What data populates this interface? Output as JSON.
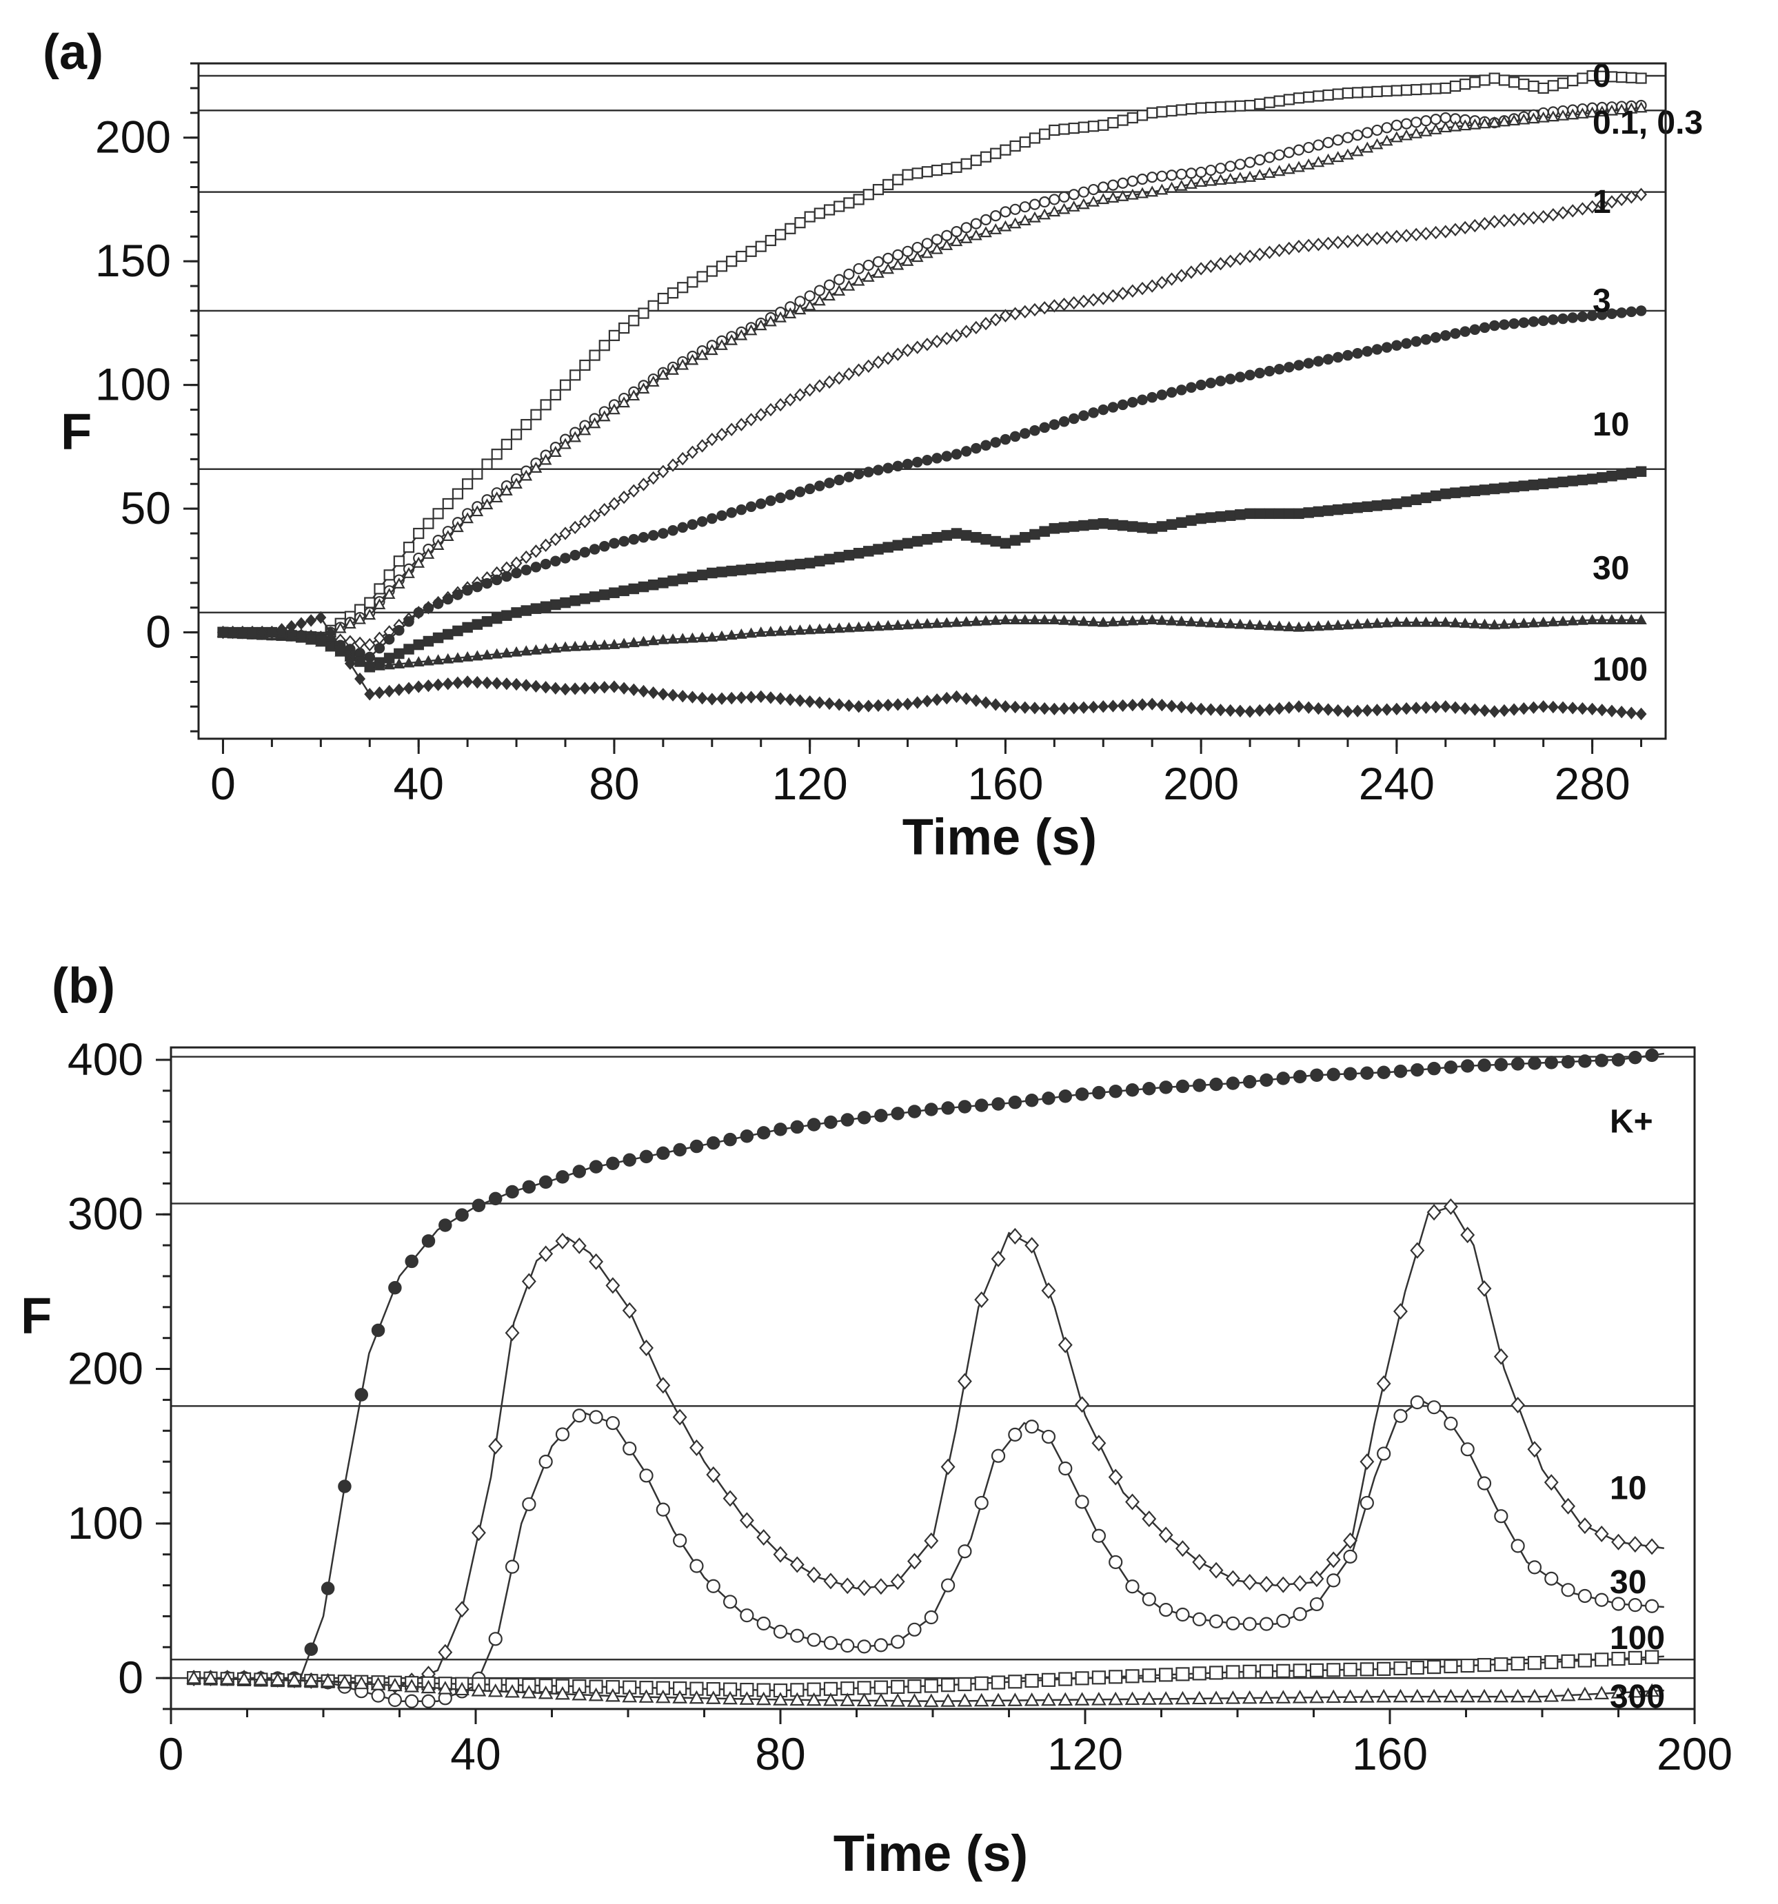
{
  "chart_data": [
    {
      "panel": "(a)",
      "type": "line",
      "xlabel": "Time (s)",
      "ylabel": "F",
      "xlim": [
        -5,
        295
      ],
      "ylim": [
        -43,
        230
      ],
      "xticks": [
        0,
        40,
        80,
        120,
        160,
        200,
        240,
        280
      ],
      "yticks": [
        0,
        50,
        100,
        150,
        200
      ],
      "reference_lines": [
        225,
        211,
        178,
        130,
        66,
        8
      ],
      "series": [
        {
          "name": "0",
          "marker": "square-open",
          "x": [
            0,
            10,
            20,
            30,
            40,
            50,
            60,
            70,
            80,
            90,
            100,
            110,
            120,
            130,
            140,
            150,
            160,
            170,
            180,
            190,
            200,
            210,
            220,
            230,
            240,
            250,
            260,
            270,
            280,
            290
          ],
          "values": [
            0,
            -1,
            -2,
            12,
            40,
            60,
            80,
            100,
            120,
            135,
            146,
            156,
            168,
            175,
            185,
            188,
            195,
            203,
            205,
            210,
            212,
            213,
            216,
            218,
            219,
            220,
            224,
            220,
            225,
            224
          ]
        },
        {
          "name": "0.1",
          "marker": "circle-open",
          "x": [
            0,
            10,
            20,
            30,
            40,
            50,
            60,
            70,
            80,
            90,
            100,
            110,
            120,
            130,
            140,
            150,
            160,
            170,
            180,
            190,
            200,
            210,
            220,
            230,
            240,
            250,
            260,
            270,
            280,
            290
          ],
          "values": [
            0,
            -1,
            -2,
            8,
            30,
            48,
            62,
            78,
            92,
            105,
            116,
            125,
            136,
            147,
            154,
            162,
            170,
            175,
            180,
            184,
            186,
            190,
            195,
            200,
            205,
            208,
            206,
            210,
            212,
            213
          ]
        },
        {
          "name": "0.3",
          "marker": "triangle-open",
          "x": [
            0,
            10,
            20,
            30,
            40,
            50,
            60,
            70,
            80,
            90,
            100,
            110,
            120,
            130,
            140,
            150,
            160,
            170,
            180,
            190,
            200,
            210,
            220,
            230,
            240,
            250,
            260,
            270,
            280,
            290
          ],
          "values": [
            0,
            -1,
            -2,
            7,
            28,
            46,
            60,
            76,
            90,
            104,
            114,
            124,
            132,
            142,
            150,
            158,
            164,
            170,
            175,
            178,
            182,
            184,
            188,
            193,
            200,
            204,
            206,
            208,
            210,
            212
          ]
        },
        {
          "name": "1",
          "marker": "diamond-open",
          "x": [
            0,
            10,
            20,
            30,
            40,
            50,
            60,
            70,
            80,
            90,
            100,
            110,
            120,
            130,
            140,
            150,
            160,
            170,
            180,
            190,
            200,
            210,
            220,
            230,
            240,
            250,
            260,
            270,
            280,
            290
          ],
          "values": [
            0,
            0,
            -2,
            -5,
            8,
            18,
            28,
            40,
            52,
            65,
            78,
            88,
            98,
            106,
            114,
            120,
            128,
            132,
            135,
            140,
            147,
            152,
            156,
            158,
            160,
            162,
            166,
            168,
            172,
            177
          ]
        },
        {
          "name": "3",
          "marker": "circle-filled",
          "x": [
            0,
            10,
            20,
            30,
            40,
            50,
            60,
            70,
            80,
            90,
            100,
            110,
            120,
            130,
            140,
            150,
            160,
            170,
            180,
            190,
            200,
            210,
            220,
            230,
            240,
            250,
            260,
            270,
            280,
            290
          ],
          "values": [
            0,
            0,
            -2,
            -10,
            8,
            17,
            24,
            30,
            36,
            40,
            46,
            52,
            58,
            64,
            68,
            72,
            78,
            84,
            90,
            95,
            100,
            104,
            108,
            112,
            116,
            120,
            124,
            126,
            128,
            130
          ]
        },
        {
          "name": "10",
          "marker": "square-filled",
          "x": [
            0,
            10,
            20,
            30,
            40,
            50,
            60,
            70,
            80,
            90,
            100,
            110,
            120,
            130,
            140,
            150,
            160,
            170,
            180,
            190,
            200,
            210,
            220,
            230,
            240,
            250,
            260,
            270,
            280,
            290
          ],
          "values": [
            0,
            0,
            -3,
            -14,
            -5,
            2,
            8,
            12,
            16,
            20,
            24,
            26,
            28,
            32,
            36,
            40,
            36,
            42,
            44,
            42,
            46,
            48,
            48,
            50,
            52,
            56,
            58,
            60,
            62,
            65
          ]
        },
        {
          "name": "30",
          "marker": "triangle-filled",
          "x": [
            0,
            10,
            20,
            30,
            40,
            50,
            60,
            70,
            80,
            90,
            100,
            110,
            120,
            130,
            140,
            150,
            160,
            170,
            180,
            190,
            200,
            210,
            220,
            230,
            240,
            250,
            260,
            270,
            280,
            290
          ],
          "values": [
            0,
            0,
            -4,
            -14,
            -12,
            -10,
            -8,
            -6,
            -5,
            -3,
            -2,
            0,
            1,
            2,
            3,
            4,
            5,
            5,
            4,
            5,
            4,
            3,
            2,
            3,
            4,
            4,
            3,
            4,
            5,
            5
          ]
        },
        {
          "name": "100",
          "marker": "diamond-filled",
          "x": [
            0,
            10,
            20,
            30,
            40,
            50,
            60,
            70,
            80,
            90,
            100,
            110,
            120,
            130,
            140,
            150,
            160,
            170,
            180,
            190,
            200,
            210,
            220,
            230,
            240,
            250,
            260,
            270,
            280,
            290
          ],
          "values": [
            0,
            0,
            6,
            -25,
            -22,
            -20,
            -21,
            -23,
            -22,
            -25,
            -27,
            -26,
            -28,
            -30,
            -29,
            -26,
            -30,
            -31,
            -30,
            -29,
            -31,
            -32,
            -30,
            -32,
            -31,
            -30,
            -32,
            -30,
            -31,
            -33
          ]
        }
      ],
      "annotations": [
        {
          "text": "0",
          "series": "0"
        },
        {
          "text": "0.1, 0.3",
          "series": "0.1"
        },
        {
          "text": "1",
          "series": "1"
        },
        {
          "text": "3",
          "series": "3"
        },
        {
          "text": "10",
          "series": "10"
        },
        {
          "text": "30",
          "series": "30"
        },
        {
          "text": "100",
          "series": "100"
        }
      ],
      "label_values": [
        225,
        206,
        174,
        134,
        84,
        26,
        -15
      ]
    },
    {
      "panel": "(b)",
      "type": "line",
      "xlabel": "Time (s)",
      "ylabel": "F",
      "xlim": [
        0,
        200
      ],
      "ylim": [
        -20,
        408
      ],
      "xticks": [
        0,
        40,
        80,
        120,
        160,
        200
      ],
      "yticks": [
        0,
        100,
        200,
        300,
        400
      ],
      "reference_lines": [
        402,
        307,
        176,
        12,
        0
      ],
      "series": [
        {
          "name": "K+",
          "marker": "circle-filled",
          "x": [
            3,
            10,
            17,
            20,
            23,
            26,
            30,
            35,
            40,
            45,
            50,
            55,
            60,
            70,
            80,
            90,
            100,
            110,
            120,
            130,
            140,
            150,
            160,
            170,
            180,
            190,
            196
          ],
          "values": [
            0,
            0,
            0,
            40,
            130,
            210,
            260,
            290,
            305,
            315,
            322,
            330,
            335,
            345,
            355,
            362,
            368,
            372,
            378,
            382,
            385,
            390,
            392,
            396,
            398,
            400,
            404
          ]
        },
        {
          "name": "10",
          "marker": "diamond-open",
          "x": [
            3,
            10,
            20,
            30,
            35,
            38,
            42,
            45,
            48,
            52,
            55,
            60,
            65,
            70,
            75,
            80,
            85,
            90,
            95,
            100,
            103,
            106,
            110,
            113,
            116,
            120,
            125,
            130,
            135,
            140,
            145,
            150,
            155,
            158,
            162,
            165,
            168,
            171,
            175,
            180,
            185,
            190,
            196
          ],
          "values": [
            0,
            0,
            -2,
            -5,
            5,
            40,
            130,
            230,
            270,
            285,
            275,
            240,
            185,
            140,
            105,
            80,
            65,
            58,
            60,
            90,
            160,
            240,
            288,
            280,
            240,
            170,
            120,
            95,
            75,
            63,
            60,
            62,
            90,
            165,
            250,
            300,
            305,
            280,
            200,
            135,
            100,
            88,
            84
          ]
        },
        {
          "name": "30",
          "marker": "circle-open",
          "x": [
            3,
            10,
            20,
            30,
            35,
            40,
            43,
            46,
            50,
            54,
            58,
            62,
            66,
            70,
            75,
            80,
            85,
            90,
            95,
            100,
            105,
            108,
            112,
            115,
            118,
            122,
            126,
            130,
            135,
            140,
            145,
            150,
            155,
            158,
            161,
            164,
            167,
            170,
            174,
            178,
            184,
            190,
            196
          ],
          "values": [
            0,
            0,
            -2,
            -15,
            -15,
            -5,
            30,
            100,
            150,
            172,
            165,
            135,
            95,
            65,
            42,
            30,
            24,
            20,
            22,
            40,
            90,
            140,
            165,
            158,
            130,
            90,
            60,
            45,
            38,
            35,
            35,
            45,
            80,
            130,
            168,
            180,
            172,
            150,
            110,
            75,
            55,
            48,
            46
          ]
        },
        {
          "name": "100",
          "marker": "square-open",
          "x": [
            3,
            20,
            40,
            60,
            80,
            100,
            120,
            140,
            160,
            180,
            196
          ],
          "values": [
            0,
            -2,
            -4,
            -6,
            -8,
            -5,
            0,
            4,
            6,
            10,
            14
          ]
        },
        {
          "name": "300",
          "marker": "triangle-open",
          "x": [
            3,
            20,
            40,
            60,
            80,
            100,
            120,
            140,
            160,
            180,
            196
          ],
          "values": [
            0,
            -2,
            -8,
            -12,
            -14,
            -15,
            -14,
            -13,
            -12,
            -12,
            -8
          ]
        }
      ],
      "annotations": [
        {
          "text": "K+",
          "series": "K+"
        },
        {
          "text": "10",
          "series": "10"
        },
        {
          "text": "30",
          "series": "30"
        },
        {
          "text": "100",
          "series": "100"
        },
        {
          "text": "300",
          "series": "300"
        }
      ],
      "label_values": [
        360,
        123,
        62,
        26,
        -12
      ]
    }
  ]
}
